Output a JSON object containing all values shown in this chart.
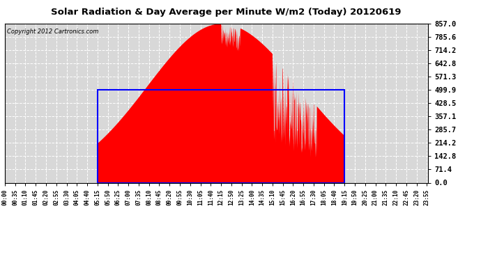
{
  "title": "Solar Radiation & Day Average per Minute W/m2 (Today) 20120619",
  "copyright": "Copyright 2012 Cartronics.com",
  "y_max": 857.0,
  "y_min": 0.0,
  "y_ticks": [
    0.0,
    71.4,
    142.8,
    214.2,
    285.7,
    357.1,
    428.5,
    499.9,
    571.3,
    642.8,
    714.2,
    785.6,
    857.0
  ],
  "fill_color": "#ff0000",
  "box_color": "#0000ff",
  "background_color": "#ffffff",
  "plot_bg_color": "#d8d8d8",
  "grid_color": "#ffffff",
  "sunrise_minute": 315,
  "sunset_minute": 1155,
  "day_avg": 499.9,
  "peak_minute": 735,
  "peak_value": 857.0,
  "total_minutes": 1440,
  "x_tick_labels": [
    "00:00",
    "00:35",
    "01:10",
    "01:45",
    "02:20",
    "02:55",
    "03:30",
    "04:05",
    "04:40",
    "05:15",
    "05:50",
    "06:25",
    "07:00",
    "07:35",
    "08:10",
    "08:45",
    "09:20",
    "09:55",
    "10:30",
    "11:05",
    "11:40",
    "12:15",
    "12:50",
    "13:25",
    "14:00",
    "14:35",
    "15:10",
    "15:45",
    "16:20",
    "16:55",
    "17:30",
    "18:05",
    "18:40",
    "19:15",
    "19:50",
    "20:25",
    "21:00",
    "21:35",
    "22:10",
    "22:45",
    "23:20",
    "23:55"
  ],
  "x_tick_minutes": [
    0,
    35,
    70,
    105,
    140,
    175,
    210,
    245,
    280,
    315,
    350,
    385,
    420,
    455,
    490,
    525,
    560,
    595,
    630,
    665,
    700,
    735,
    770,
    805,
    840,
    875,
    910,
    945,
    980,
    1015,
    1050,
    1085,
    1120,
    1155,
    1190,
    1225,
    1260,
    1295,
    1330,
    1365,
    1400,
    1435
  ]
}
